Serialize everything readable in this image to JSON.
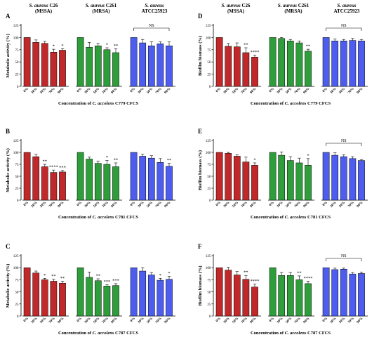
{
  "headers": [
    {
      "species": "S. aureus",
      "strain": "C26",
      "group": "(MSSA)"
    },
    {
      "species": "S. aureus",
      "strain": "C261",
      "group": "(MRSA)"
    },
    {
      "species": "S. aureus",
      "strain": "",
      "group": "ATCC25923"
    }
  ],
  "colors": {
    "group1": "#c0282a",
    "group2": "#2e9e3a",
    "group3": "#4c5df0"
  },
  "categories": [
    "0%",
    "30%",
    "50%",
    "70%",
    "90%"
  ],
  "chart_data": [
    {
      "type": "bar",
      "panel_letter": "A",
      "ylabel": "Metabolic activity (%)",
      "xlabel_prefix": "Concentration of ",
      "xlabel_species": "C. accolens",
      "xlabel_suffix": " C779 CFCS",
      "ylim": [
        0,
        125
      ],
      "yticks": [
        0,
        25,
        50,
        75,
        100,
        125
      ],
      "series": [
        {
          "values": [
            100,
            90,
            88,
            70,
            74
          ],
          "errors": [
            0,
            5,
            4,
            6,
            3
          ],
          "stars": [
            "",
            "",
            "",
            "*",
            "*"
          ]
        },
        {
          "values": [
            100,
            80,
            83,
            75,
            69
          ],
          "errors": [
            0,
            10,
            5,
            4,
            8
          ],
          "stars": [
            "",
            "",
            "",
            "*",
            "**"
          ]
        },
        {
          "values": [
            100,
            89,
            83,
            87,
            83
          ],
          "errors": [
            0,
            7,
            8,
            4,
            8
          ],
          "stars": [
            "",
            "",
            "",
            "",
            ""
          ]
        }
      ],
      "ns": [
        false,
        false,
        true
      ]
    },
    {
      "type": "bar",
      "panel_letter": "B",
      "ylabel": "Metabolic activity (%)",
      "xlabel_prefix": "Concentration of ",
      "xlabel_species": "C. accolens",
      "xlabel_suffix": " C781 CFCS",
      "ylim": [
        0,
        125
      ],
      "yticks": [
        0,
        25,
        50,
        75,
        100,
        125
      ],
      "series": [
        {
          "values": [
            100,
            91,
            70,
            58,
            59
          ],
          "errors": [
            0,
            5,
            5,
            5,
            3
          ],
          "stars": [
            "",
            "",
            "**",
            "****",
            "***"
          ]
        },
        {
          "values": [
            100,
            86,
            77,
            75,
            70
          ],
          "errors": [
            0,
            4,
            5,
            8,
            8
          ],
          "stars": [
            "",
            "",
            "",
            "*",
            "**"
          ]
        },
        {
          "values": [
            100,
            92,
            88,
            79,
            71
          ],
          "errors": [
            0,
            4,
            5,
            8,
            6
          ],
          "stars": [
            "",
            "",
            "",
            "",
            "**"
          ]
        }
      ],
      "ns": [
        false,
        false,
        false
      ]
    },
    {
      "type": "bar",
      "panel_letter": "C",
      "ylabel": "Metabolic activity (%)",
      "xlabel_prefix": "Concentration of ",
      "xlabel_species": "C. accolens",
      "xlabel_suffix": " C787 CFCS",
      "ylim": [
        0,
        125
      ],
      "yticks": [
        0,
        25,
        50,
        75,
        100,
        125
      ],
      "series": [
        {
          "values": [
            100,
            89,
            75,
            72,
            68
          ],
          "errors": [
            0,
            4,
            3,
            4,
            4
          ],
          "stars": [
            "",
            "",
            "*",
            "**",
            "**"
          ]
        },
        {
          "values": [
            100,
            80,
            73,
            62,
            63
          ],
          "errors": [
            0,
            11,
            4,
            3,
            4
          ],
          "stars": [
            "",
            "",
            "**",
            "***",
            "***"
          ]
        },
        {
          "values": [
            100,
            93,
            85,
            74,
            76
          ],
          "errors": [
            0,
            7,
            5,
            4,
            6
          ],
          "stars": [
            "",
            "",
            "",
            "*",
            "*"
          ]
        }
      ],
      "ns": [
        false,
        false,
        false
      ]
    },
    {
      "type": "bar",
      "panel_letter": "D",
      "ylabel": "Biofilm biomass (%)",
      "xlabel_prefix": "Concentration of ",
      "xlabel_species": "C. accolens",
      "xlabel_suffix": " C779 CFCS",
      "ylim": [
        0,
        125
      ],
      "yticks": [
        0,
        25,
        50,
        75,
        100,
        125
      ],
      "series": [
        {
          "values": [
            100,
            82,
            81,
            69,
            60
          ],
          "errors": [
            0,
            6,
            8,
            10,
            4
          ],
          "stars": [
            "",
            "",
            "",
            "**",
            "****"
          ]
        },
        {
          "values": [
            100,
            98,
            93,
            89,
            72
          ],
          "errors": [
            0,
            2,
            3,
            4,
            4
          ],
          "stars": [
            "",
            "",
            "",
            "",
            "**"
          ]
        },
        {
          "values": [
            100,
            93,
            93,
            94,
            93
          ],
          "errors": [
            0,
            4,
            3,
            4,
            3
          ],
          "stars": [
            "",
            "",
            "",
            "",
            ""
          ]
        }
      ],
      "ns": [
        false,
        false,
        true
      ]
    },
    {
      "type": "bar",
      "panel_letter": "E",
      "ylabel": "Biofilm biomass (%)",
      "xlabel_prefix": "Concentration of ",
      "xlabel_species": "C. accolens",
      "xlabel_suffix": " C781 CFCS",
      "ylim": [
        0,
        125
      ],
      "yticks": [
        0,
        25,
        50,
        75,
        100,
        125
      ],
      "series": [
        {
          "values": [
            100,
            98,
            92,
            80,
            73
          ],
          "errors": [
            0,
            2,
            3,
            10,
            5
          ],
          "stars": [
            "",
            "",
            "",
            "",
            "*"
          ]
        },
        {
          "values": [
            100,
            94,
            83,
            78,
            73
          ],
          "errors": [
            0,
            7,
            8,
            10,
            14
          ],
          "stars": [
            "",
            "",
            "",
            "",
            "*"
          ]
        },
        {
          "values": [
            100,
            94,
            91,
            87,
            83
          ],
          "errors": [
            0,
            5,
            4,
            4,
            2
          ],
          "stars": [
            "",
            "",
            "",
            "",
            ""
          ]
        }
      ],
      "ns": [
        false,
        false,
        true
      ]
    },
    {
      "type": "bar",
      "panel_letter": "F",
      "ylabel": "Biofilm biomass (%)",
      "xlabel_prefix": "Concentration of ",
      "xlabel_species": "C. accolens",
      "xlabel_suffix": " C787 CFCS",
      "ylim": [
        0,
        125
      ],
      "yticks": [
        0,
        25,
        50,
        75,
        100,
        125
      ],
      "series": [
        {
          "values": [
            100,
            95,
            85,
            76,
            60
          ],
          "errors": [
            0,
            6,
            7,
            8,
            6
          ],
          "stars": [
            "",
            "",
            "",
            "**",
            "****"
          ]
        },
        {
          "values": [
            100,
            84,
            84,
            75,
            67
          ],
          "errors": [
            0,
            6,
            6,
            8,
            5
          ],
          "stars": [
            "",
            "",
            "",
            "**",
            "****"
          ]
        },
        {
          "values": [
            100,
            96,
            97,
            87,
            88
          ],
          "errors": [
            0,
            3,
            2,
            3,
            3
          ],
          "stars": [
            "",
            "",
            "",
            "",
            ""
          ]
        }
      ],
      "ns": [
        false,
        false,
        true
      ]
    }
  ]
}
